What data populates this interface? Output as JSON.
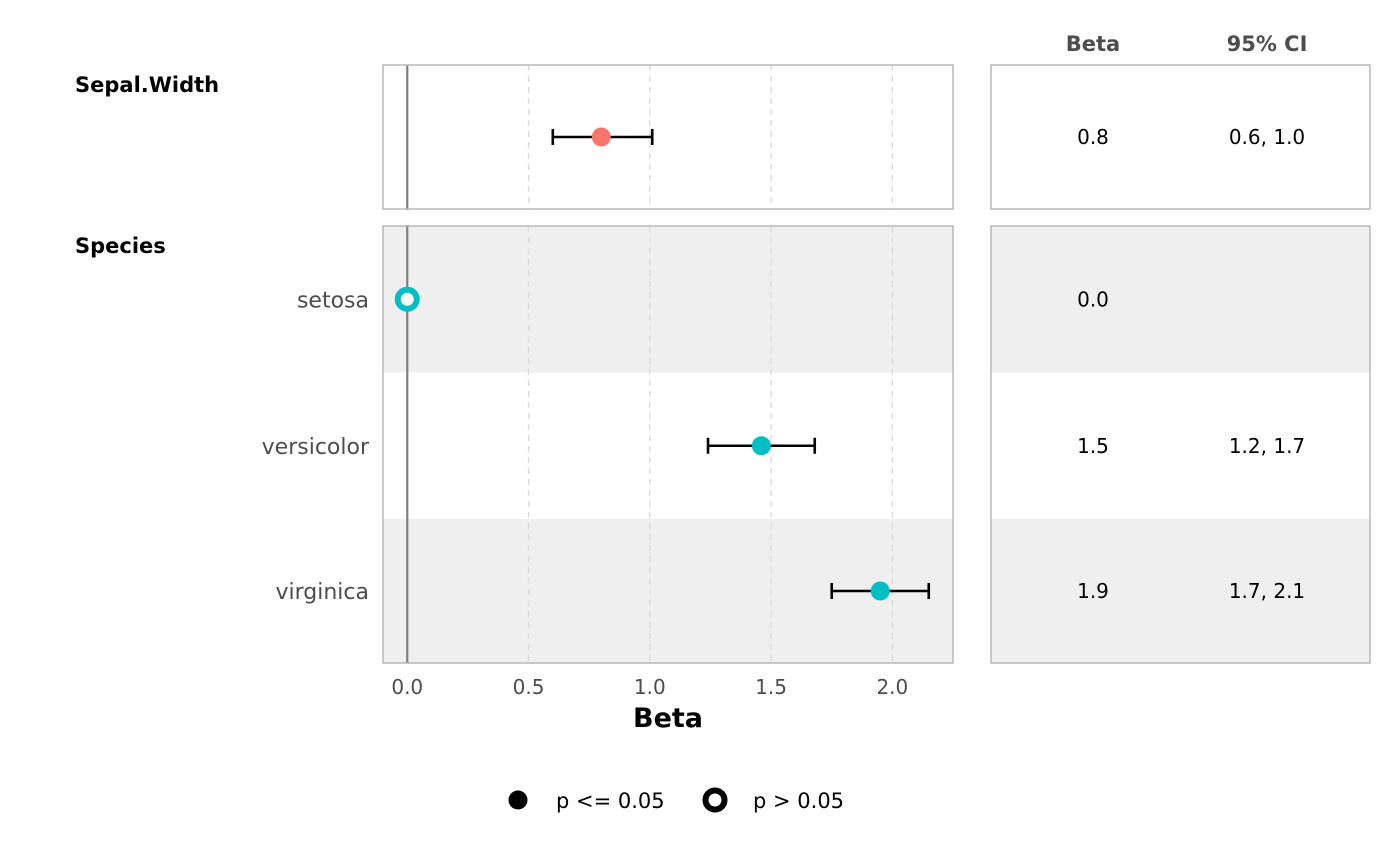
{
  "chart_data": {
    "type": "forest",
    "xlabel": "Beta",
    "xlim": [
      -0.1,
      2.25
    ],
    "xticks": [
      0.0,
      0.5,
      1.0,
      1.5,
      2.0
    ],
    "xtick_labels": [
      "0.0",
      "0.5",
      "1.0",
      "1.5",
      "2.0"
    ],
    "reference_line": 0,
    "grid": "vertical-dashed",
    "table_headers": {
      "beta": "Beta",
      "ci": "95% CI"
    },
    "groups": [
      {
        "name": "Sepal.Width",
        "rows": [
          {
            "label": "",
            "estimate": 0.8,
            "ci_low": 0.6,
            "ci_high": 1.01,
            "beta_text": "0.8",
            "ci_text": "0.6, 1.0",
            "significant": true,
            "color": "#F8766D"
          }
        ]
      },
      {
        "name": "Species",
        "rows": [
          {
            "label": "setosa",
            "estimate": 0.0,
            "ci_low": null,
            "ci_high": null,
            "beta_text": "0.0",
            "ci_text": "",
            "significant": false,
            "color": "#00BFC4"
          },
          {
            "label": "versicolor",
            "estimate": 1.46,
            "ci_low": 1.24,
            "ci_high": 1.68,
            "beta_text": "1.5",
            "ci_text": "1.2, 1.7",
            "significant": true,
            "color": "#00BFC4"
          },
          {
            "label": "virginica",
            "estimate": 1.95,
            "ci_low": 1.75,
            "ci_high": 2.15,
            "beta_text": "1.9",
            "ci_text": "1.7, 2.1",
            "significant": true,
            "color": "#00BFC4"
          }
        ]
      }
    ],
    "legend": {
      "placement": "bottom",
      "items": [
        {
          "label": "p <= 0.05",
          "shape": "filled-circle"
        },
        {
          "label": "p > 0.05",
          "shape": "hollow-circle"
        }
      ]
    }
  }
}
